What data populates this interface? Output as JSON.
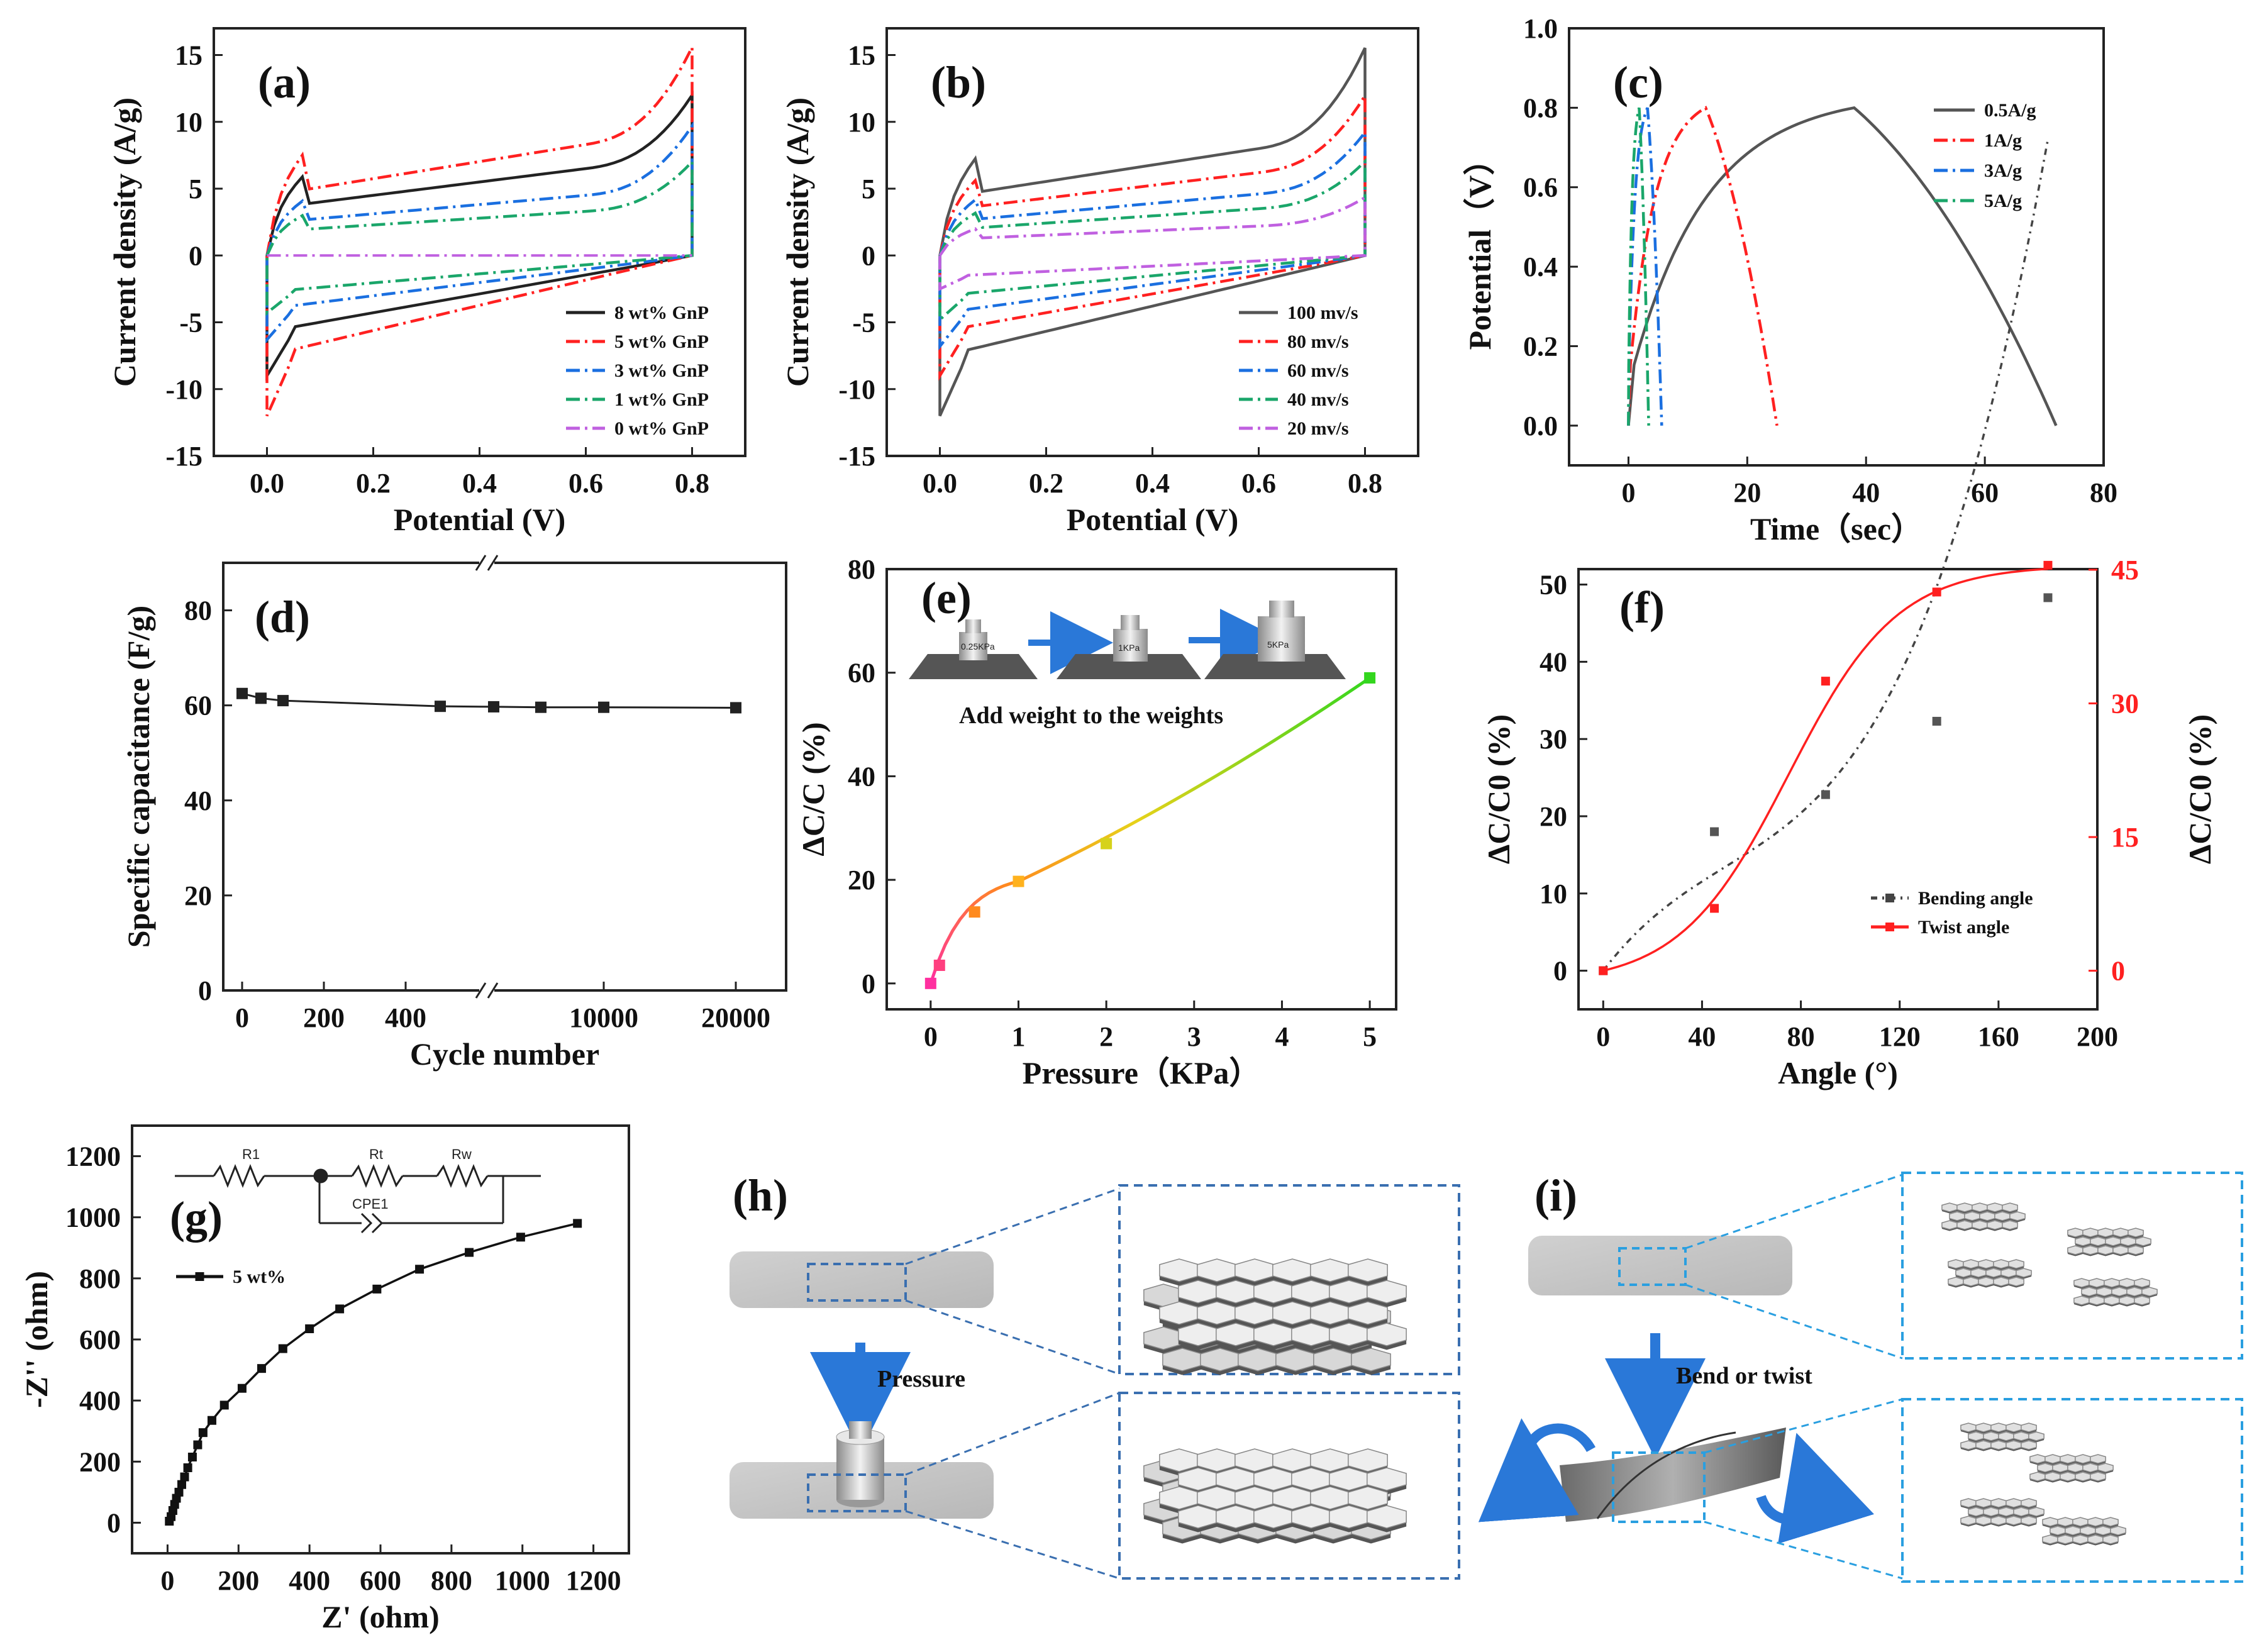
{
  "colors": {
    "black": "#222222",
    "red": "#ff2020",
    "blue": "#1a6fe0",
    "green": "#1aa66a",
    "purple": "#c060e0",
    "gray": "#555555",
    "dashBlue": "#3a6fb0",
    "dashCyan": "#2a9fe0",
    "arrow": "#2a78d8"
  },
  "chart_data": [
    {
      "id": "a",
      "type": "line",
      "panel_label": "(a)",
      "xlabel": "Potential (V)",
      "ylabel": "Current density (A/g)",
      "xlim": [
        -0.1,
        0.9
      ],
      "ylim": [
        -15,
        17
      ],
      "xticks": [
        "0.0",
        "0.2",
        "0.4",
        "0.6",
        "0.8"
      ],
      "xtick_values": [
        0,
        0.2,
        0.4,
        0.6,
        0.8
      ],
      "yticks": [
        "-15",
        "-10",
        "-5",
        "0",
        "5",
        "10",
        "15"
      ],
      "ytick_values": [
        -15,
        -10,
        -5,
        0,
        5,
        10,
        15
      ],
      "legend": [
        "8 wt% GnP",
        "5 wt% GnP",
        "3 wt% GnP",
        "1 wt% GnP",
        "0 wt% GnP"
      ],
      "series": [
        {
          "name": "8 wt% GnP",
          "color": "black",
          "dash": "solid",
          "peak": 11,
          "plateau": 6.5,
          "neg": -9,
          "slope": 2.5
        },
        {
          "name": "5 wt% GnP",
          "color": "red",
          "dash": "dashdot",
          "peak": 14.3,
          "plateau": 8.3,
          "neg": -12,
          "slope": 3.0
        },
        {
          "name": "3 wt% GnP",
          "color": "blue",
          "dash": "dashdot",
          "peak": 9,
          "plateau": 4.5,
          "neg": -6.3,
          "slope": 1.8
        },
        {
          "name": "1 wt% GnP",
          "color": "green",
          "dash": "dashdot",
          "peak": 6.5,
          "plateau": 3.3,
          "neg": -4.3,
          "slope": 1.2
        },
        {
          "name": "0 wt% GnP",
          "color": "purple",
          "dash": "dashdot",
          "peak": 0.1,
          "plateau": 0.05,
          "neg": -0.05,
          "slope": 0
        }
      ]
    },
    {
      "id": "b",
      "type": "line",
      "panel_label": "(b)",
      "xlabel": "Potential (V)",
      "ylabel": "Current density (A/g)",
      "xlim": [
        -0.1,
        0.9
      ],
      "ylim": [
        -15,
        17
      ],
      "xticks": [
        "0.0",
        "0.2",
        "0.4",
        "0.6",
        "0.8"
      ],
      "xtick_values": [
        0,
        0.2,
        0.4,
        0.6,
        0.8
      ],
      "yticks": [
        "-15",
        "-10",
        "-5",
        "0",
        "5",
        "10",
        "15"
      ],
      "ytick_values": [
        -15,
        -10,
        -5,
        0,
        5,
        10,
        15
      ],
      "legend": [
        "100 mv/s",
        "80 mv/s",
        "60 mv/s",
        "40 mv/s",
        "20 mv/s"
      ],
      "series": [
        {
          "name": "100 mv/s",
          "color": "gray",
          "dash": "solid",
          "peak": 14.3,
          "plateau": 8,
          "neg": -12,
          "slope": 3.2
        },
        {
          "name": "80 mv/s",
          "color": "red",
          "dash": "dashdot",
          "peak": 11,
          "plateau": 6.2,
          "neg": -9,
          "slope": 2.5
        },
        {
          "name": "60 mv/s",
          "color": "blue",
          "dash": "dashdot",
          "peak": 8.5,
          "plateau": 4.6,
          "neg": -6.8,
          "slope": 1.9
        },
        {
          "name": "40 mv/s",
          "color": "green",
          "dash": "dashdot",
          "peak": 6.5,
          "plateau": 3.5,
          "neg": -4.8,
          "slope": 1.3
        },
        {
          "name": "20 mv/s",
          "color": "purple",
          "dash": "dashdot",
          "peak": 4,
          "plateau": 2.2,
          "neg": -2.5,
          "slope": 0.7
        }
      ]
    },
    {
      "id": "c",
      "type": "line",
      "panel_label": "(c)",
      "xlabel": "Time（sec）",
      "ylabel": "Potential（V）",
      "xlim": [
        -10,
        80
      ],
      "ylim": [
        -0.1,
        1.0
      ],
      "xticks": [
        "0",
        "20",
        "40",
        "60",
        "80"
      ],
      "xtick_values": [
        0,
        20,
        40,
        60,
        80
      ],
      "yticks": [
        "0.0",
        "0.2",
        "0.4",
        "0.6",
        "0.8",
        "1.0"
      ],
      "ytick_values": [
        0,
        0.2,
        0.4,
        0.6,
        0.8,
        1.0
      ],
      "legend": [
        "0.5A/g",
        "1A/g",
        "3A/g",
        "5A/g"
      ],
      "series": [
        {
          "name": "0.5A/g",
          "color": "gray",
          "dash": "solid",
          "tc": 38,
          "td": 72
        },
        {
          "name": "1A/g",
          "color": "red",
          "dash": "dashdot",
          "tc": 13,
          "td": 25
        },
        {
          "name": "3A/g",
          "color": "blue",
          "dash": "dashdot",
          "tc": 3.2,
          "td": 5.6
        },
        {
          "name": "5A/g",
          "color": "green",
          "dash": "dashdot",
          "tc": 1.8,
          "td": 3.4
        }
      ]
    },
    {
      "id": "d",
      "type": "scatter",
      "panel_label": "(d)",
      "xlabel": "Cycle number",
      "ylabel": "Specific capacitance (F/g)",
      "ylim": [
        0,
        90
      ],
      "xticks": [
        "0",
        "200",
        "400",
        "10000",
        "20000"
      ],
      "yticks": [
        "0",
        "20",
        "40",
        "60",
        "80"
      ],
      "ytick_values": [
        0,
        20,
        40,
        60,
        80
      ],
      "x": [
        0,
        50,
        100,
        500,
        1500,
        5000,
        10000,
        20000
      ],
      "y": [
        62.5,
        61.5,
        61,
        59.8,
        59.7,
        59.6,
        59.6,
        59.5
      ]
    },
    {
      "id": "e",
      "type": "scatter",
      "panel_label": "(e)",
      "xlabel": "Pressure（KPa）",
      "ylabel": "ΔC/C (%)",
      "xlim": [
        -0.5,
        5.3
      ],
      "ylim": [
        -5,
        80
      ],
      "xticks": [
        "0",
        "1",
        "2",
        "3",
        "4",
        "5"
      ],
      "xtick_values": [
        0,
        1,
        2,
        3,
        4,
        5
      ],
      "yticks": [
        "0",
        "20",
        "40",
        "60",
        "80"
      ],
      "ytick_values": [
        0,
        20,
        40,
        60,
        80
      ],
      "x": [
        0,
        0.1,
        0.5,
        1,
        2,
        5
      ],
      "y": [
        0,
        3.5,
        13.8,
        19.7,
        27,
        59
      ],
      "annotation": "Add weight to the weights",
      "weight_labels": [
        "0.25KPa",
        "1KPa",
        "5KPa"
      ]
    },
    {
      "id": "f",
      "type": "scatter",
      "panel_label": "(f)",
      "xlabel": "Angle (°)",
      "ylabel": "ΔC/C0 (%)",
      "ylabel_right": "ΔC/C0 (%)",
      "xlim": [
        -10,
        200
      ],
      "ylim": [
        -5,
        52
      ],
      "ylim_right": [
        -4.33,
        45.07
      ],
      "xticks": [
        "0",
        "40",
        "80",
        "120",
        "160",
        "200"
      ],
      "xtick_values": [
        0,
        40,
        80,
        120,
        160,
        200
      ],
      "yticks": [
        "0",
        "10",
        "20",
        "30",
        "40",
        "50"
      ],
      "ytick_values": [
        0,
        10,
        20,
        30,
        40,
        50
      ],
      "yticks_right": [
        "0",
        "15",
        "30",
        "45"
      ],
      "ytick_values_right": [
        0,
        15,
        30,
        45
      ],
      "legend": [
        "Bending angle",
        "Twist angle"
      ],
      "series": [
        {
          "name": "Bending angle",
          "color": "gray",
          "x": [
            0,
            45,
            90,
            135,
            180
          ],
          "y": [
            0,
            18,
            22.8,
            32.3,
            48.3
          ]
        },
        {
          "name": "Twist angle",
          "color": "red",
          "x": [
            0,
            45,
            90,
            135,
            180
          ],
          "y": [
            0,
            7,
            32.5,
            42.5,
            45.5
          ]
        }
      ]
    },
    {
      "id": "g",
      "type": "scatter",
      "panel_label": "(g)",
      "xlabel": "Z' (ohm)",
      "ylabel": "-Z'' (ohm)",
      "xlim": [
        -100,
        1300
      ],
      "ylim": [
        -100,
        1300
      ],
      "xticks": [
        "0",
        "200",
        "400",
        "600",
        "800",
        "1000",
        "1200"
      ],
      "xtick_values": [
        0,
        200,
        400,
        600,
        800,
        1000,
        1200
      ],
      "yticks": [
        "0",
        "200",
        "400",
        "600",
        "800",
        "1000",
        "1200"
      ],
      "ytick_values": [
        0,
        200,
        400,
        600,
        800,
        1000,
        1200
      ],
      "legend": [
        "5 wt%"
      ],
      "circuit_labels": [
        "R1",
        "Rt",
        "Rw",
        "CPE1"
      ],
      "x": [
        5,
        10,
        15,
        20,
        25,
        32,
        40,
        48,
        57,
        70,
        85,
        100,
        125,
        160,
        210,
        265,
        325,
        400,
        485,
        590,
        710,
        850,
        995,
        1155
      ],
      "y": [
        5,
        20,
        40,
        60,
        80,
        100,
        125,
        150,
        180,
        215,
        255,
        295,
        335,
        385,
        440,
        505,
        570,
        635,
        700,
        765,
        830,
        885,
        935,
        980
      ]
    }
  ],
  "panels": {
    "h": {
      "label": "(h)",
      "arrow_text": "Pressure"
    },
    "i": {
      "label": "(i)",
      "arrow_text": "Bend or twist"
    }
  }
}
